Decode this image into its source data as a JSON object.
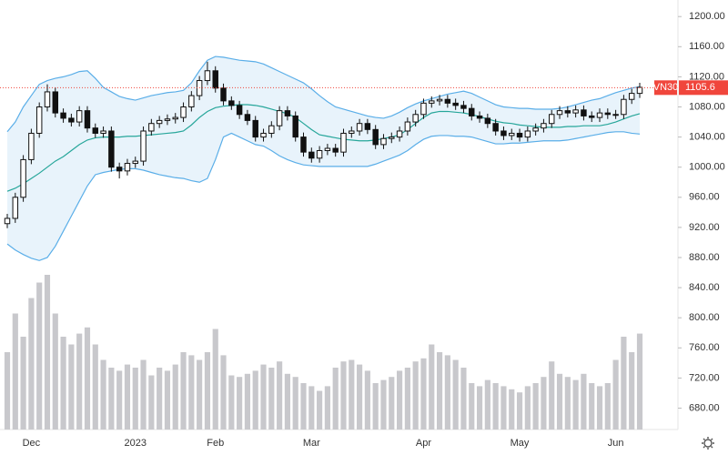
{
  "chart_data": {
    "type": "candlestick",
    "symbol": "VN30",
    "last_price": 1105.6,
    "categories": [
      null,
      null,
      null,
      "Dec",
      null,
      null,
      null,
      null,
      null,
      null,
      null,
      null,
      null,
      null,
      null,
      null,
      "2023",
      null,
      null,
      null,
      null,
      null,
      null,
      null,
      null,
      null,
      "Feb",
      null,
      null,
      null,
      null,
      null,
      null,
      null,
      null,
      null,
      null,
      null,
      "Mar",
      null,
      null,
      null,
      null,
      null,
      null,
      null,
      null,
      null,
      null,
      null,
      null,
      null,
      "Apr",
      null,
      null,
      null,
      null,
      null,
      null,
      null,
      null,
      null,
      null,
      null,
      "May",
      null,
      null,
      null,
      null,
      null,
      null,
      null,
      null,
      null,
      null,
      null,
      "Jun",
      null,
      null,
      null
    ],
    "open": [
      925,
      932,
      960,
      1010,
      1045,
      1080,
      1100,
      1072,
      1065,
      1060,
      1075,
      1052,
      1045,
      1048,
      1000,
      995,
      1005,
      1008,
      1048,
      1058,
      1062,
      1064,
      1066,
      1080,
      1095,
      1115,
      1128,
      1105,
      1088,
      1082,
      1070,
      1062,
      1040,
      1045,
      1055,
      1075,
      1068,
      1040,
      1020,
      1012,
      1022,
      1025,
      1020,
      1045,
      1048,
      1058,
      1050,
      1030,
      1038,
      1040,
      1048,
      1060,
      1070,
      1085,
      1088,
      1090,
      1085,
      1082,
      1078,
      1068,
      1065,
      1058,
      1048,
      1042,
      1045,
      1040,
      1048,
      1052,
      1058,
      1070,
      1075,
      1072,
      1076,
      1068,
      1066,
      1072,
      1070,
      1070,
      1090,
      1098
    ],
    "high": [
      938,
      966,
      1016,
      1051,
      1086,
      1110,
      1106,
      1078,
      1071,
      1081,
      1081,
      1058,
      1054,
      1054,
      1006,
      1011,
      1014,
      1054,
      1064,
      1068,
      1070,
      1072,
      1086,
      1101,
      1121,
      1140,
      1134,
      1111,
      1094,
      1088,
      1076,
      1068,
      1051,
      1061,
      1081,
      1081,
      1074,
      1046,
      1026,
      1028,
      1031,
      1031,
      1051,
      1054,
      1064,
      1064,
      1056,
      1044,
      1046,
      1054,
      1066,
      1076,
      1091,
      1094,
      1096,
      1096,
      1091,
      1088,
      1084,
      1074,
      1071,
      1064,
      1054,
      1051,
      1051,
      1054,
      1058,
      1064,
      1076,
      1081,
      1081,
      1082,
      1082,
      1074,
      1078,
      1078,
      1076,
      1096,
      1104,
      1112
    ],
    "low": [
      919,
      926,
      954,
      1004,
      1039,
      1074,
      1066,
      1059,
      1054,
      1054,
      1046,
      1039,
      1039,
      994,
      985,
      989,
      999,
      1002,
      1042,
      1052,
      1056,
      1058,
      1060,
      1074,
      1089,
      1109,
      1099,
      1082,
      1076,
      1064,
      1056,
      1034,
      1034,
      1039,
      1049,
      1062,
      1034,
      1014,
      1006,
      1006,
      1016,
      1014,
      1014,
      1039,
      1042,
      1044,
      1024,
      1024,
      1032,
      1034,
      1042,
      1054,
      1064,
      1079,
      1082,
      1079,
      1076,
      1072,
      1062,
      1059,
      1052,
      1042,
      1036,
      1036,
      1034,
      1034,
      1042,
      1046,
      1052,
      1064,
      1066,
      1066,
      1062,
      1060,
      1060,
      1064,
      1064,
      1064,
      1084,
      1092
    ],
    "close": [
      932,
      960,
      1010,
      1045,
      1080,
      1100,
      1072,
      1065,
      1060,
      1075,
      1052,
      1045,
      1048,
      1000,
      995,
      1005,
      1008,
      1048,
      1058,
      1062,
      1064,
      1066,
      1080,
      1095,
      1115,
      1128,
      1105,
      1088,
      1082,
      1070,
      1062,
      1040,
      1045,
      1055,
      1075,
      1068,
      1040,
      1020,
      1012,
      1022,
      1025,
      1020,
      1045,
      1048,
      1058,
      1050,
      1030,
      1038,
      1040,
      1048,
      1060,
      1070,
      1085,
      1088,
      1090,
      1085,
      1082,
      1078,
      1068,
      1065,
      1058,
      1048,
      1042,
      1045,
      1040,
      1048,
      1052,
      1058,
      1070,
      1075,
      1072,
      1076,
      1068,
      1066,
      1072,
      1070,
      1070,
      1090,
      1098,
      1106
    ],
    "bands": {
      "upper": [
        1047,
        1060,
        1080,
        1095,
        1110,
        1115,
        1118,
        1120,
        1123,
        1127,
        1128,
        1118,
        1106,
        1100,
        1094,
        1091,
        1089,
        1092,
        1095,
        1097,
        1099,
        1100,
        1102,
        1112,
        1128,
        1142,
        1147,
        1146,
        1144,
        1142,
        1141,
        1140,
        1137,
        1132,
        1127,
        1122,
        1117,
        1112,
        1104,
        1095,
        1087,
        1080,
        1077,
        1074,
        1071,
        1068,
        1066,
        1065,
        1068,
        1073,
        1079,
        1084,
        1088,
        1091,
        1094,
        1097,
        1099,
        1101,
        1098,
        1093,
        1088,
        1083,
        1080,
        1079,
        1078,
        1078,
        1077,
        1077,
        1077,
        1078,
        1080,
        1083,
        1086,
        1089,
        1091,
        1095,
        1099,
        1102,
        1105,
        1107
      ],
      "middle": [
        968,
        972,
        978,
        985,
        992,
        1000,
        1008,
        1014,
        1022,
        1030,
        1036,
        1039,
        1040,
        1040,
        1040,
        1041,
        1041,
        1042,
        1043,
        1044,
        1045,
        1046,
        1048,
        1056,
        1066,
        1074,
        1079,
        1081,
        1082,
        1083,
        1083,
        1082,
        1080,
        1077,
        1074,
        1071,
        1066,
        1058,
        1050,
        1043,
        1041,
        1039,
        1037,
        1036,
        1035,
        1035,
        1036,
        1038,
        1040,
        1043,
        1050,
        1058,
        1066,
        1072,
        1074,
        1074,
        1073,
        1072,
        1070,
        1067,
        1064,
        1061,
        1059,
        1058,
        1056,
        1055,
        1054,
        1053,
        1053,
        1053,
        1054,
        1054,
        1055,
        1055,
        1055,
        1057,
        1060,
        1064,
        1068,
        1071
      ],
      "lower": [
        898,
        890,
        884,
        879,
        876,
        880,
        895,
        915,
        935,
        955,
        975,
        990,
        993,
        995,
        997,
        998,
        998,
        996,
        993,
        990,
        988,
        986,
        985,
        982,
        980,
        985,
        1010,
        1040,
        1045,
        1040,
        1035,
        1030,
        1028,
        1022,
        1015,
        1010,
        1006,
        1003,
        1002,
        1001,
        1001,
        1001,
        1001,
        1001,
        1001,
        1001,
        1004,
        1008,
        1012,
        1016,
        1022,
        1030,
        1037,
        1041,
        1042,
        1042,
        1041,
        1041,
        1040,
        1037,
        1034,
        1031,
        1031,
        1032,
        1032,
        1033,
        1034,
        1035,
        1035,
        1035,
        1036,
        1038,
        1040,
        1042,
        1044,
        1046,
        1047,
        1047,
        1045,
        1044
      ]
    },
    "volume": [
      50,
      75,
      60,
      85,
      95,
      100,
      75,
      60,
      55,
      62,
      66,
      55,
      45,
      40,
      38,
      42,
      40,
      45,
      35,
      40,
      38,
      42,
      50,
      48,
      45,
      50,
      65,
      48,
      35,
      34,
      36,
      38,
      42,
      40,
      44,
      36,
      34,
      30,
      28,
      25,
      28,
      40,
      44,
      45,
      42,
      38,
      30,
      32,
      34,
      38,
      40,
      44,
      46,
      55,
      50,
      48,
      45,
      40,
      30,
      28,
      32,
      30,
      28,
      26,
      24,
      28,
      30,
      34,
      44,
      36,
      34,
      32,
      36,
      30,
      28,
      30,
      45,
      60,
      50,
      62
    ],
    "volume_ylim": [
      0,
      100
    ],
    "ylim": [
      654,
      1222
    ],
    "yticks": [
      {
        "value": 680,
        "label": "680.00"
      },
      {
        "value": 720,
        "label": "720.00"
      },
      {
        "value": 760,
        "label": "760.00"
      },
      {
        "value": 800,
        "label": "800.00"
      },
      {
        "value": 840,
        "label": "840.00"
      },
      {
        "value": 880,
        "label": "880.00"
      },
      {
        "value": 920,
        "label": "920.00"
      },
      {
        "value": 960,
        "label": "960.00"
      },
      {
        "value": 1000,
        "label": "1000.00"
      },
      {
        "value": 1040,
        "label": "1040.00"
      },
      {
        "value": 1080,
        "label": "1080.00"
      },
      {
        "value": 1120,
        "label": "1120.00"
      },
      {
        "value": 1160,
        "label": "1160.00"
      },
      {
        "value": 1200,
        "label": "1200.00"
      }
    ],
    "grid": false,
    "up_color": "#ffffff",
    "down_color": "#111111",
    "band_color": "#5aaee8",
    "band_fill": "#e8f3fb",
    "middle_color": "#26a69a",
    "volume_color": "#c8c8cc",
    "last_color": "#f0463c"
  }
}
